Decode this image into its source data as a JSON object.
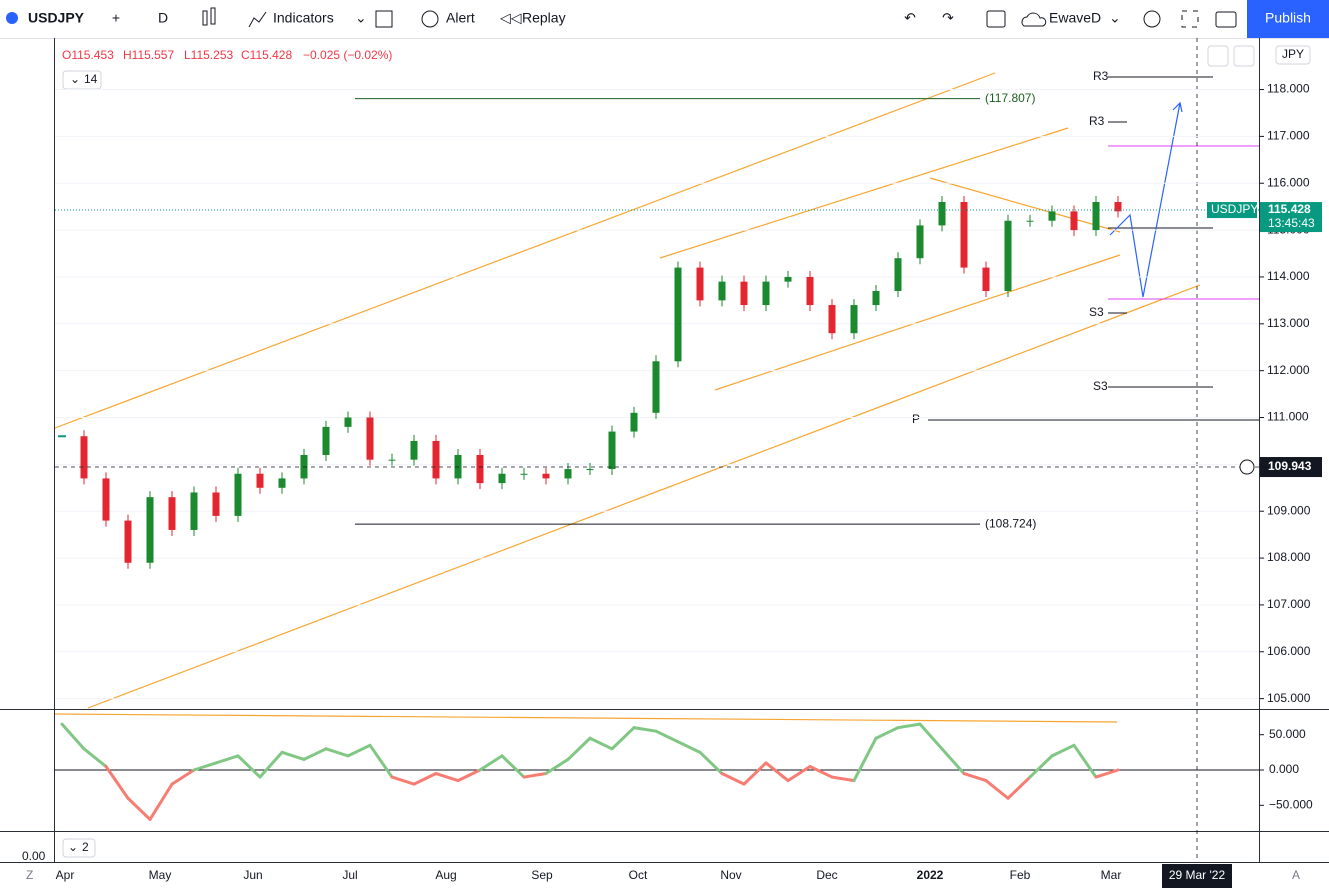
{
  "toolbar": {
    "symbol": "USDJPY",
    "interval": "D",
    "indicators": "Indicators",
    "alert": "Alert",
    "replay": "Replay",
    "layout": "EwaveD",
    "publish": "Publish"
  },
  "legend": {
    "open": "O115.453",
    "high": "H115.557",
    "low": "L115.253",
    "close": "C115.428",
    "change": "−0.025 (−0.02%)",
    "length": "14",
    "osc_length": "2"
  },
  "price_pane": {
    "currency": "JPY",
    "ylim": [
      104.8,
      119.1
    ],
    "yticks": [
      {
        "value": 105,
        "label": "105.000"
      },
      {
        "value": 106,
        "label": "106.000"
      },
      {
        "value": 107,
        "label": "107.000"
      },
      {
        "value": 108,
        "label": "108.000"
      },
      {
        "value": 109,
        "label": "109.000"
      },
      {
        "value": 110,
        "label": "110.000"
      },
      {
        "value": 111,
        "label": "111.000"
      },
      {
        "value": 112,
        "label": "112.000"
      },
      {
        "value": 113,
        "label": "113.000"
      },
      {
        "value": 114,
        "label": "114.000"
      },
      {
        "value": 115,
        "label": "115.000"
      },
      {
        "value": 116,
        "label": "116.000"
      },
      {
        "value": 117,
        "label": "117.000"
      },
      {
        "value": 118,
        "label": "118.000"
      }
    ],
    "closes": [
      110.6,
      109.7,
      108.8,
      107.9,
      109.3,
      108.6,
      109.4,
      108.9,
      109.8,
      109.5,
      109.7,
      110.2,
      110.8,
      111.0,
      110.1,
      110.1,
      110.5,
      109.7,
      110.2,
      109.6,
      109.8,
      109.8,
      109.7,
      109.9,
      109.9,
      110.7,
      111.1,
      112.2,
      114.2,
      113.5,
      113.9,
      113.4,
      113.9,
      114.0,
      113.4,
      112.8,
      113.4,
      113.7,
      114.4,
      115.1,
      115.6,
      114.2,
      113.7,
      115.2,
      115.2,
      115.4,
      115.0,
      115.6,
      115.4
    ],
    "last": {
      "symbol": "USDJPY",
      "price": {
        "value": 115.428,
        "label": "115.428"
      },
      "countdown": "13:45:43"
    },
    "crosshair": {
      "value": 109.943,
      "label": "109.943"
    },
    "levels": [
      {
        "value": 117.807,
        "label": "(117.807)"
      },
      {
        "value": 108.724,
        "label": "(108.724)"
      }
    ],
    "pivots": [
      "R3",
      "R3",
      "S3",
      "S3",
      "P"
    ]
  },
  "osc_pane": {
    "ylim": [
      -85,
      85
    ],
    "yticks": [
      {
        "value": 50,
        "label": "50.000"
      },
      {
        "value": 0,
        "label": "0.000"
      },
      {
        "value": -50,
        "label": "−50.000"
      }
    ],
    "values": [
      65,
      30,
      5,
      -40,
      -70,
      -20,
      0,
      10,
      20,
      -10,
      25,
      15,
      30,
      20,
      35,
      -10,
      -20,
      -5,
      -15,
      0,
      20,
      -10,
      -5,
      15,
      45,
      30,
      60,
      55,
      40,
      25,
      -5,
      -20,
      10,
      -15,
      5,
      -10,
      -15,
      45,
      60,
      65,
      30,
      -5,
      -15,
      -40,
      -10,
      20,
      35,
      -10,
      0
    ]
  },
  "small_pane": {
    "label": "0.00"
  },
  "time_axis": {
    "labels": [
      "Apr",
      "May",
      "Jun",
      "Jul",
      "Aug",
      "Sep",
      "Oct",
      "Nov",
      "Dec",
      "2022",
      "Feb",
      "Mar"
    ],
    "cursor": "29 Mar '22",
    "left": "Z",
    "right": "A"
  }
}
